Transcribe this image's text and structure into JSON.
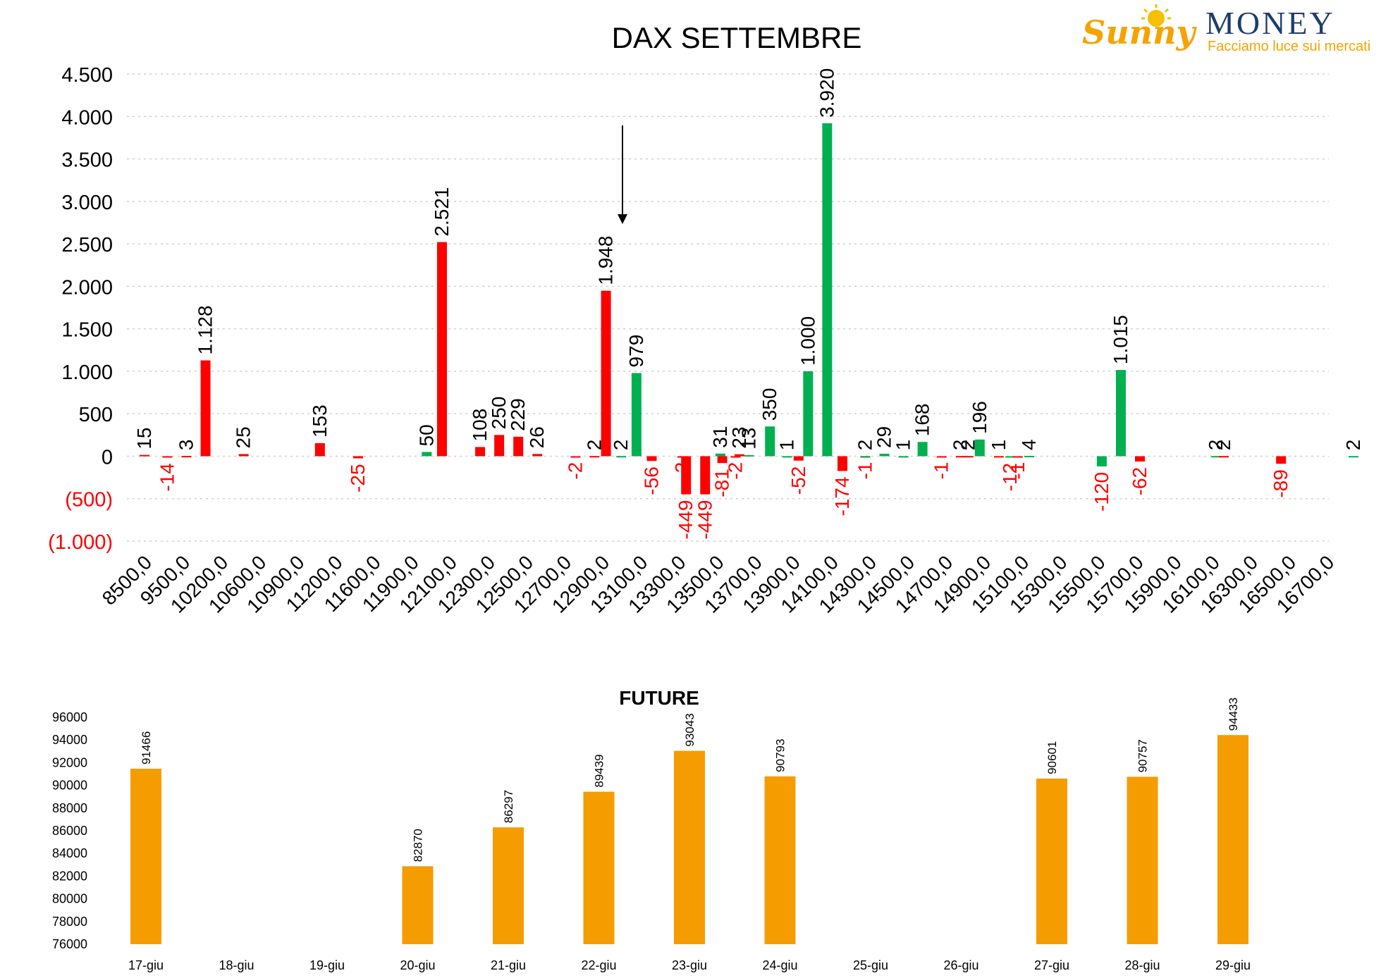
{
  "logo": {
    "word1": "Sunny",
    "word2": "MONEY",
    "tagline": "Facciamo luce sui mercati",
    "colors": {
      "sunny": "#f5a300",
      "money": "#1f3d6b",
      "sun": "#f5c000"
    }
  },
  "chart_data": [
    {
      "type": "bar",
      "title": "DAX SETTEMBRE",
      "xlabel": "",
      "ylabel": "",
      "ylim": [
        -1000,
        4500
      ],
      "yticks": [
        {
          "value": 4500,
          "label": "4.500"
        },
        {
          "value": 4000,
          "label": "4.000"
        },
        {
          "value": 3500,
          "label": "3.500"
        },
        {
          "value": 3000,
          "label": "3.000"
        },
        {
          "value": 2500,
          "label": "2.500"
        },
        {
          "value": 2000,
          "label": "2.000"
        },
        {
          "value": 1500,
          "label": "1.500"
        },
        {
          "value": 1000,
          "label": "1.000"
        },
        {
          "value": 500,
          "label": "500"
        },
        {
          "value": 0,
          "label": "0"
        },
        {
          "value": -500,
          "label": "(500)"
        },
        {
          "value": -1000,
          "label": "(1.000)"
        }
      ],
      "categories": [
        "8500,0",
        "9500,0",
        "10200,0",
        "10600,0",
        "10900,0",
        "11200,0",
        "11600,0",
        "11900,0",
        "12100,0",
        "12300,0",
        "12500,0",
        "12700,0",
        "12900,0",
        "13100,0",
        "13300,0",
        "13500,0",
        "13700,0",
        "13900,0",
        "14100,0",
        "14300,0",
        "14500,0",
        "14700,0",
        "14900,0",
        "15100,0",
        "15300,0",
        "15500,0",
        "15700,0",
        "15900,0",
        "16100,0",
        "16300,0",
        "16500,0",
        "16700,0"
      ],
      "grid": true,
      "annotation": "downward arrow above the 13100,0 strike",
      "colors": {
        "red": "#ff0000",
        "green": "#00b050",
        "negative_tick": "#ff0000"
      },
      "bars": [
        {
          "x": 0.0,
          "value": 15,
          "label": "15",
          "color": "red"
        },
        {
          "x": 0.6,
          "value": -14,
          "label": "-14",
          "color": "red"
        },
        {
          "x": 1.1,
          "value": 3,
          "label": "3",
          "color": "red"
        },
        {
          "x": 1.6,
          "value": 1128,
          "label": "1.128",
          "color": "red"
        },
        {
          "x": 2.6,
          "value": 25,
          "label": "25",
          "color": "red"
        },
        {
          "x": 4.6,
          "value": 153,
          "label": "153",
          "color": "red"
        },
        {
          "x": 5.6,
          "value": -25,
          "label": "-25",
          "color": "red"
        },
        {
          "x": 7.4,
          "value": 50,
          "label": "50",
          "color": "green"
        },
        {
          "x": 7.8,
          "value": 2521,
          "label": "2.521",
          "color": "red"
        },
        {
          "x": 8.8,
          "value": 108,
          "label": "108",
          "color": "red"
        },
        {
          "x": 9.3,
          "value": 250,
          "label": "250",
          "color": "red"
        },
        {
          "x": 9.8,
          "value": 229,
          "label": "229",
          "color": "red"
        },
        {
          "x": 10.3,
          "value": 26,
          "label": "26",
          "color": "red"
        },
        {
          "x": 11.3,
          "value": -2,
          "label": "-2",
          "color": "red"
        },
        {
          "x": 11.8,
          "value": 2,
          "label": "2",
          "color": "red"
        },
        {
          "x": 12.1,
          "value": 1948,
          "label": "1.948",
          "color": "red"
        },
        {
          "x": 12.5,
          "value": 2,
          "label": "2",
          "color": "green"
        },
        {
          "x": 12.9,
          "value": 979,
          "label": "979",
          "color": "green"
        },
        {
          "x": 13.3,
          "value": -56,
          "label": "-56",
          "color": "red"
        },
        {
          "x": 14.1,
          "value": -2,
          "label": "-2",
          "color": "red"
        },
        {
          "x": 14.2,
          "value": -449,
          "label": "-449",
          "color": "red"
        },
        {
          "x": 14.7,
          "value": -449,
          "label": "-449",
          "color": "red"
        },
        {
          "x": 15.1,
          "value": 31,
          "label": "31",
          "color": "green"
        },
        {
          "x": 15.15,
          "value": -81,
          "label": "-81",
          "color": "red"
        },
        {
          "x": 15.5,
          "value": -2,
          "label": "-2",
          "color": "red"
        },
        {
          "x": 15.6,
          "value": 23,
          "label": "23",
          "color": "red"
        },
        {
          "x": 15.85,
          "value": 13,
          "label": "13",
          "color": "green"
        },
        {
          "x": 16.4,
          "value": 350,
          "label": "350",
          "color": "green"
        },
        {
          "x": 16.85,
          "value": 1,
          "label": "1",
          "color": "green"
        },
        {
          "x": 17.15,
          "value": -52,
          "label": "-52",
          "color": "red"
        },
        {
          "x": 17.4,
          "value": 1000,
          "label": "1.000",
          "color": "green"
        },
        {
          "x": 17.9,
          "value": 3920,
          "label": "3.920",
          "color": "green"
        },
        {
          "x": 18.3,
          "value": -174,
          "label": "-174",
          "color": "red"
        },
        {
          "x": 18.9,
          "value": -1,
          "label": "-1",
          "color": "red"
        },
        {
          "x": 18.9,
          "value": 2,
          "label": "2",
          "color": "green"
        },
        {
          "x": 19.4,
          "value": 29,
          "label": "29",
          "color": "green"
        },
        {
          "x": 19.9,
          "value": 1,
          "label": "1",
          "color": "green"
        },
        {
          "x": 20.4,
          "value": 168,
          "label": "168",
          "color": "green"
        },
        {
          "x": 20.9,
          "value": -1,
          "label": "-1",
          "color": "red"
        },
        {
          "x": 21.4,
          "value": 2,
          "label": "2",
          "color": "red"
        },
        {
          "x": 21.6,
          "value": 2,
          "label": "2",
          "color": "red"
        },
        {
          "x": 21.9,
          "value": 196,
          "label": "196",
          "color": "green"
        },
        {
          "x": 22.4,
          "value": 1,
          "label": "1",
          "color": "red"
        },
        {
          "x": 22.7,
          "value": -12,
          "label": "-12",
          "color": "green"
        },
        {
          "x": 22.9,
          "value": -1,
          "label": "-1",
          "color": "red"
        },
        {
          "x": 23.2,
          "value": 4,
          "label": "4",
          "color": "green"
        },
        {
          "x": 25.1,
          "value": -120,
          "label": "-120",
          "color": "green"
        },
        {
          "x": 25.6,
          "value": 1015,
          "label": "1.015",
          "color": "green"
        },
        {
          "x": 26.1,
          "value": -62,
          "label": "-62",
          "color": "red"
        },
        {
          "x": 28.1,
          "value": 2,
          "label": "2",
          "color": "green"
        },
        {
          "x": 28.3,
          "value": 2,
          "label": "2",
          "color": "red"
        },
        {
          "x": 29.8,
          "value": -89,
          "label": "-89",
          "color": "red"
        },
        {
          "x": 31.7,
          "value": 2,
          "label": "2",
          "color": "green"
        }
      ]
    },
    {
      "type": "bar",
      "title": "FUTURE",
      "xlabel": "",
      "ylabel": "",
      "ylim": [
        76000,
        96000
      ],
      "yticks": [
        76000,
        78000,
        80000,
        82000,
        84000,
        86000,
        88000,
        90000,
        92000,
        94000,
        96000
      ],
      "categories": [
        "17-giu",
        "18-giu",
        "19-giu",
        "20-giu",
        "21-giu",
        "22-giu",
        "23-giu",
        "24-giu",
        "25-giu",
        "26-giu",
        "27-giu",
        "28-giu",
        "29-giu"
      ],
      "values": [
        91466,
        null,
        null,
        82870,
        86297,
        89439,
        93043,
        90793,
        null,
        null,
        90601,
        90757,
        94433
      ],
      "grid": false,
      "bar_color": "#f59c00"
    }
  ]
}
